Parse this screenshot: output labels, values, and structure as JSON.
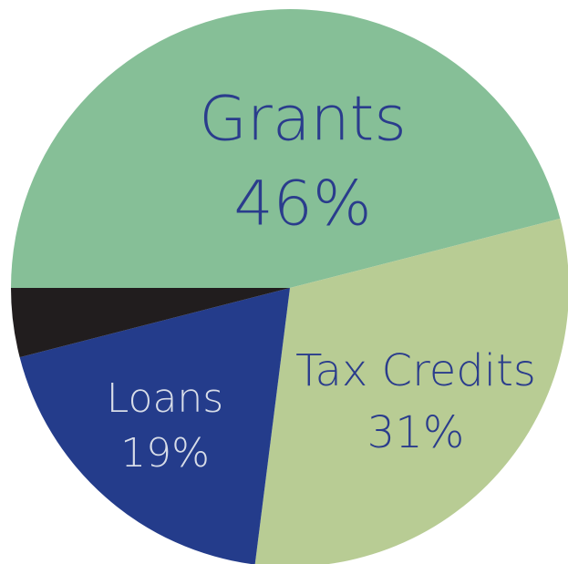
{
  "chart_data": {
    "type": "pie",
    "categories": [
      "Grants",
      "Tax Credits",
      "Loans",
      null
    ],
    "values": [
      46,
      31,
      19,
      4
    ],
    "value_labels": [
      "46%",
      "31%",
      "19%",
      null
    ],
    "colors": [
      "#86bf97",
      "#b8cc94",
      "#243c8b",
      "#211d1e"
    ]
  }
}
